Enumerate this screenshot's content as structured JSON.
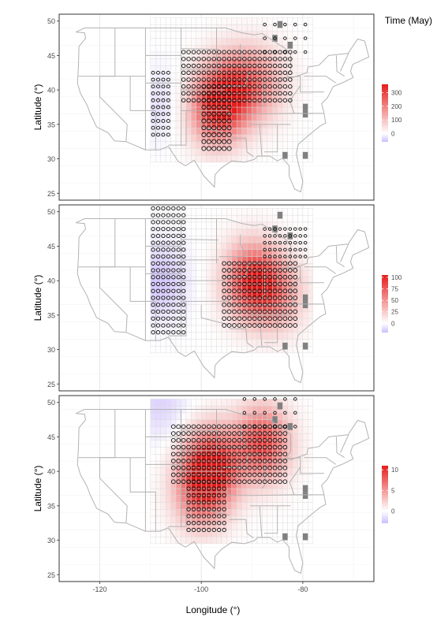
{
  "header": {
    "time_label": "Time (May)"
  },
  "chart_data": [
    {
      "type": "heatmap",
      "ylabel": "Latitude (°)",
      "xlim": [
        -128,
        -66
      ],
      "ylim": [
        24,
        51
      ],
      "yticks": [
        25,
        30,
        35,
        40,
        45,
        50
      ],
      "legend": {
        "placement": "right",
        "ticks": [
          0,
          100,
          200,
          300
        ],
        "range": [
          -60,
          360
        ]
      },
      "hotspots": [
        {
          "lon": -97,
          "lat": 37.5,
          "value": 330
        },
        {
          "lon": -93,
          "lat": 40.5,
          "value": 200
        },
        {
          "lon": -88,
          "lat": 41,
          "value": 120
        },
        {
          "lon": -107,
          "lat": 38,
          "value": -30
        }
      ],
      "circles": [
        {
          "region": [
            -110,
            -107,
            33,
            42
          ],
          "step": 1,
          "r": 2
        },
        {
          "region": [
            -104,
            -83,
            38,
            45
          ],
          "step": 1,
          "r": 2.3
        },
        {
          "region": [
            -100,
            -95,
            31,
            40
          ],
          "step": 1,
          "r": 2.6
        },
        {
          "region": [
            -88,
            -80,
            45,
            49
          ],
          "step": 2,
          "r": 1.8
        }
      ]
    },
    {
      "type": "heatmap",
      "ylabel": "Latitude (°)",
      "xlim": [
        -128,
        -66
      ],
      "ylim": [
        24,
        51
      ],
      "yticks": [
        25,
        30,
        35,
        40,
        45,
        50
      ],
      "legend": {
        "placement": "right",
        "ticks": [
          0,
          25,
          50,
          75,
          100
        ],
        "range": [
          -20,
          105
        ]
      },
      "hotspots": [
        {
          "lon": -90,
          "lat": 40,
          "value": 95
        },
        {
          "lon": -85,
          "lat": 38,
          "value": 45
        },
        {
          "lon": -108,
          "lat": 40,
          "value": -18
        }
      ],
      "circles": [
        {
          "region": [
            -110,
            -104,
            32,
            50
          ],
          "step": 1,
          "r": 2.2
        },
        {
          "region": [
            -96,
            -82,
            33,
            42
          ],
          "step": 1,
          "r": 2.4
        },
        {
          "region": [
            -88,
            -80,
            43,
            47
          ],
          "step": 1,
          "r": 1.8
        }
      ]
    },
    {
      "type": "heatmap",
      "ylabel": "Latitude (°)",
      "xlabel": "Longitude (°)",
      "xlim": [
        -128,
        -66
      ],
      "ylim": [
        24,
        51
      ],
      "xticks": [
        -120,
        -100,
        -80
      ],
      "yticks": [
        25,
        30,
        35,
        40,
        45,
        50
      ],
      "legend": {
        "placement": "right",
        "ticks": [
          0,
          5,
          10
        ],
        "range": [
          -3,
          11
        ]
      },
      "hotspots": [
        {
          "lon": -98,
          "lat": 41,
          "value": 10
        },
        {
          "lon": -88,
          "lat": 44,
          "value": 9
        },
        {
          "lon": -100,
          "lat": 37,
          "value": 7
        },
        {
          "lon": -108,
          "lat": 50,
          "value": -2
        }
      ],
      "circles": [
        {
          "region": [
            -106,
            -84,
            38,
            46
          ],
          "step": 1,
          "r": 2.4
        },
        {
          "region": [
            -103,
            -96,
            31,
            38
          ],
          "step": 1,
          "r": 2.2
        },
        {
          "region": [
            -92,
            -81,
            46,
            50
          ],
          "step": 2,
          "r": 1.8
        }
      ]
    }
  ]
}
